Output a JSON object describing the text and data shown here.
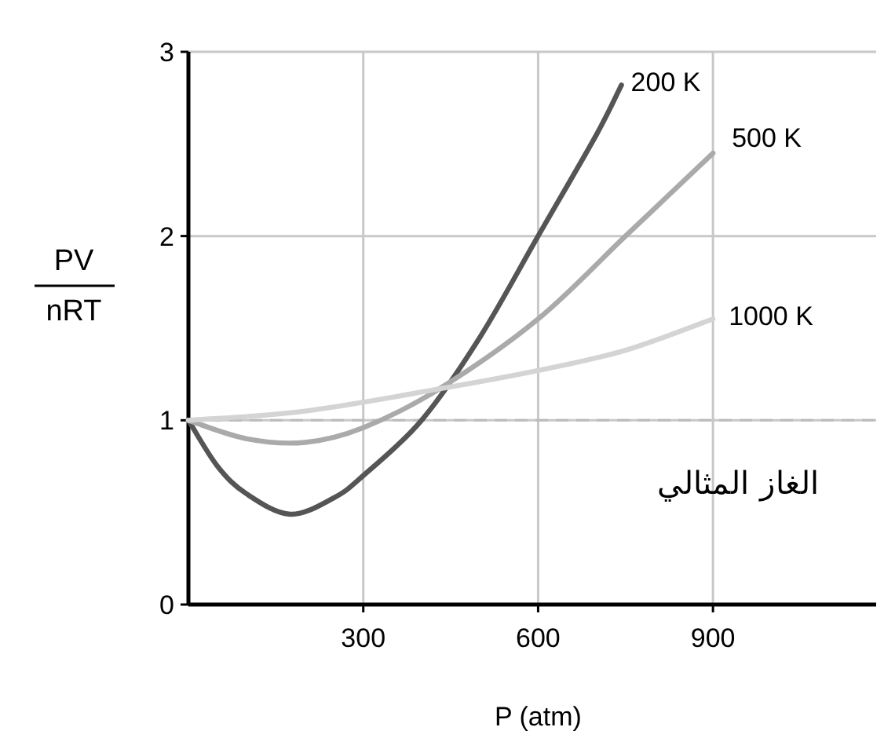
{
  "chart_data": {
    "type": "line",
    "xlabel": "P (atm)",
    "ylabel": "PV/nRT",
    "xlim": [
      0,
      1180
    ],
    "ylim": [
      0,
      3
    ],
    "xticks": [
      300,
      600,
      900
    ],
    "yticks": [
      0,
      1,
      2,
      3
    ],
    "grid": true,
    "legend": false,
    "marker": "none",
    "line_style": "solid",
    "series": [
      {
        "name": "200 K",
        "color": "#555555",
        "x": [
          0,
          50,
          100,
          175,
          250,
          300,
          400,
          500,
          600,
          700,
          743
        ],
        "values": [
          1.0,
          0.75,
          0.6,
          0.49,
          0.58,
          0.7,
          1.0,
          1.45,
          2.0,
          2.55,
          2.82
        ]
      },
      {
        "name": "500 K",
        "color": "#aaaaaa",
        "x": [
          0,
          100,
          200,
          300,
          430,
          600,
          750,
          900
        ],
        "values": [
          1.0,
          0.9,
          0.88,
          0.96,
          1.17,
          1.55,
          2.0,
          2.45
        ]
      },
      {
        "name": "1000 K",
        "color": "#d4d4d4",
        "x": [
          0,
          200,
          430,
          600,
          750,
          900
        ],
        "values": [
          1.0,
          1.05,
          1.17,
          1.27,
          1.38,
          1.55
        ]
      }
    ],
    "ref_lines": [
      {
        "axis": "y",
        "value": 1,
        "label": "الغاز المثالي",
        "color": "#bbbbbb",
        "line_style": "dashed"
      }
    ]
  }
}
